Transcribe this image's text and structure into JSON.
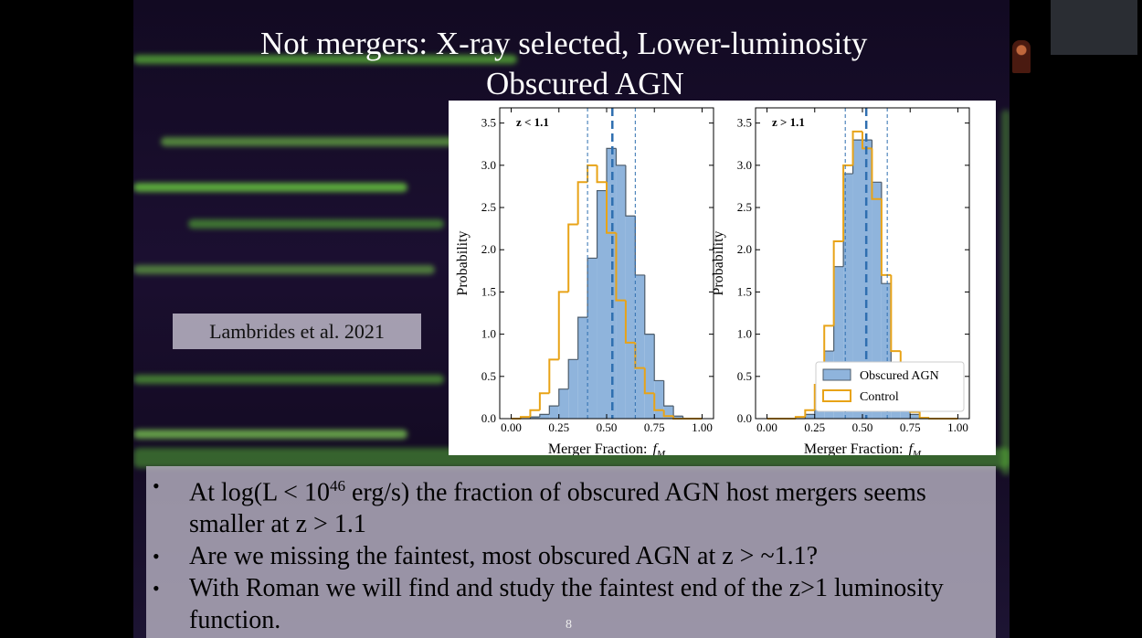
{
  "slide": {
    "title_lines": [
      "Not mergers: X-ray selected, Lower-luminosity",
      "Obscured AGN"
    ],
    "citation": "Lambrides et al. 2021",
    "bullets": [
      {
        "pre": "At log(L < 10",
        "sup": "46",
        "post": " erg/s) the fraction of obscured AGN host mergers seems smaller at z > 1.1"
      },
      {
        "pre": "Are we missing the faintest, most obscured AGN at z > ~1.1?"
      },
      {
        "pre": "With Roman we will find and study the faintest end of the z>1 luminosity function."
      }
    ],
    "page_number": "8"
  },
  "chart_data": [
    {
      "type": "histogram",
      "panel_label": "z < 1.1",
      "x_label": "Merger Fraction:",
      "x_symbol": "f",
      "x_subscript": "M",
      "y_label": "Probability",
      "bins": [
        0,
        0.05,
        0.1,
        0.15,
        0.2,
        0.25,
        0.3,
        0.35,
        0.4,
        0.45,
        0.5,
        0.55,
        0.6,
        0.65,
        0.7,
        0.75,
        0.8,
        0.85,
        0.9,
        0.95,
        1.0
      ],
      "series": [
        {
          "name": "Obscured AGN",
          "color": "#8fb4dc",
          "edge_color": "#4d5c6b",
          "style": "filled",
          "values": [
            0,
            0,
            0.02,
            0.05,
            0.15,
            0.35,
            0.7,
            1.2,
            1.9,
            2.7,
            3.2,
            3.0,
            2.4,
            1.7,
            1.0,
            0.45,
            0.15,
            0.03,
            0,
            0
          ]
        },
        {
          "name": "Control",
          "color": "#e8a317",
          "style": "step",
          "values": [
            0,
            0.02,
            0.1,
            0.3,
            0.7,
            1.5,
            2.3,
            2.8,
            3.0,
            2.8,
            2.2,
            1.4,
            0.9,
            0.6,
            0.3,
            0.1,
            0.03,
            0,
            0,
            0
          ]
        }
      ],
      "vlines": [
        0.4,
        0.53,
        0.65
      ],
      "vline_color": "#2f6fb0",
      "xlim": [
        -0.06,
        1.06
      ],
      "ylim": [
        0,
        3.68
      ],
      "xticks": [
        {
          "value": 0,
          "label": "0.00"
        },
        {
          "value": 0.25,
          "label": "0.25"
        },
        {
          "value": 0.5,
          "label": "0.50"
        },
        {
          "value": 0.75,
          "label": "0.75"
        },
        {
          "value": 1,
          "label": "1.00"
        }
      ],
      "yticks": [
        {
          "value": 0,
          "label": "0.0"
        },
        {
          "value": 0.5,
          "label": "0.5"
        },
        {
          "value": 1,
          "label": "1.0"
        },
        {
          "value": 1.5,
          "label": "1.5"
        },
        {
          "value": 2,
          "label": "2.0"
        },
        {
          "value": 2.5,
          "label": "2.5"
        },
        {
          "value": 3,
          "label": "3.0"
        },
        {
          "value": 3.5,
          "label": "3.5"
        }
      ],
      "legend": false
    },
    {
      "type": "histogram",
      "panel_label": "z > 1.1",
      "x_label": "Merger Fraction:",
      "x_symbol": "f",
      "x_subscript": "M",
      "y_label": "Probability",
      "bins": [
        0,
        0.05,
        0.1,
        0.15,
        0.2,
        0.25,
        0.3,
        0.35,
        0.4,
        0.45,
        0.5,
        0.55,
        0.6,
        0.65,
        0.7,
        0.75,
        0.8,
        0.85,
        0.9,
        0.95,
        1.0
      ],
      "series": [
        {
          "name": "Obscured AGN",
          "color": "#8fb4dc",
          "edge_color": "#4d5c6b",
          "style": "filled",
          "values": [
            0,
            0,
            0,
            0,
            0.05,
            0.2,
            0.8,
            1.8,
            2.9,
            3.3,
            3.3,
            2.8,
            1.6,
            0.6,
            0.2,
            0.05,
            0,
            0,
            0,
            0
          ]
        },
        {
          "name": "Control",
          "color": "#e8a317",
          "style": "step",
          "values": [
            0,
            0,
            0,
            0.02,
            0.1,
            0.4,
            1.1,
            2.1,
            3.0,
            3.4,
            3.2,
            2.6,
            1.7,
            0.8,
            0.3,
            0.08,
            0.01,
            0,
            0,
            0
          ]
        }
      ],
      "vlines": [
        0.41,
        0.52,
        0.63
      ],
      "vline_color": "#2f6fb0",
      "xlim": [
        -0.06,
        1.06
      ],
      "ylim": [
        0,
        3.68
      ],
      "xticks": [
        {
          "value": 0,
          "label": "0.00"
        },
        {
          "value": 0.25,
          "label": "0.25"
        },
        {
          "value": 0.5,
          "label": "0.50"
        },
        {
          "value": 0.75,
          "label": "0.75"
        },
        {
          "value": 1,
          "label": "1.00"
        }
      ],
      "yticks": [
        {
          "value": 0,
          "label": "0.0"
        },
        {
          "value": 0.5,
          "label": "0.5"
        },
        {
          "value": 1,
          "label": "1.0"
        },
        {
          "value": 1.5,
          "label": "1.5"
        },
        {
          "value": 2,
          "label": "2.0"
        },
        {
          "value": 2.5,
          "label": "2.5"
        },
        {
          "value": 3,
          "label": "3.0"
        },
        {
          "value": 3.5,
          "label": "3.5"
        }
      ],
      "legend": true
    }
  ]
}
